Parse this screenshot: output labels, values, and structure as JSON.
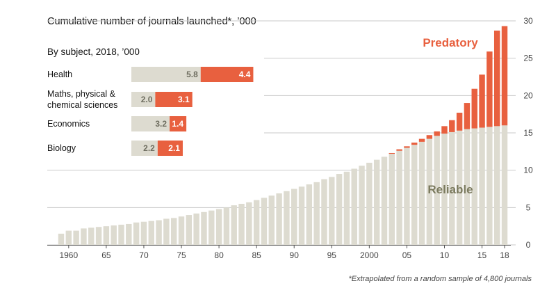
{
  "colors": {
    "reliable": "#dddbd0",
    "predatory": "#e8603f",
    "reliable_text": "#7b7a5e",
    "predatory_text": "#e8603f",
    "grid": "#c9c9c9"
  },
  "chart_data": [
    {
      "type": "bar",
      "stacked": true,
      "title": "Cumulative number of journals launched*, ’000",
      "x": [
        1959,
        1960,
        1961,
        1962,
        1963,
        1964,
        1965,
        1966,
        1967,
        1968,
        1969,
        1970,
        1971,
        1972,
        1973,
        1974,
        1975,
        1976,
        1977,
        1978,
        1979,
        1980,
        1981,
        1982,
        1983,
        1984,
        1985,
        1986,
        1987,
        1988,
        1989,
        1990,
        1991,
        1992,
        1993,
        1994,
        1995,
        1996,
        1997,
        1998,
        1999,
        2000,
        2001,
        2002,
        2003,
        2004,
        2005,
        2006,
        2007,
        2008,
        2009,
        2010,
        2011,
        2012,
        2013,
        2014,
        2015,
        2016,
        2017,
        2018
      ],
      "x_tick_values": [
        1960,
        1965,
        1970,
        1975,
        1980,
        1985,
        1990,
        1995,
        2000,
        2005,
        2010,
        2015,
        2018
      ],
      "x_tick_labels": [
        "1960",
        "65",
        "70",
        "75",
        "80",
        "85",
        "90",
        "95",
        "2000",
        "05",
        "10",
        "15",
        "18"
      ],
      "y_ticks": [
        "0",
        "5",
        "10",
        "15",
        "20",
        "25",
        "30"
      ],
      "ylim": [
        0,
        30
      ],
      "series": [
        {
          "name": "Reliable",
          "values": [
            1.5,
            1.9,
            1.9,
            2.2,
            2.3,
            2.4,
            2.5,
            2.6,
            2.7,
            2.8,
            3.0,
            3.1,
            3.2,
            3.3,
            3.5,
            3.6,
            3.8,
            4.0,
            4.2,
            4.4,
            4.6,
            4.8,
            5.0,
            5.3,
            5.5,
            5.7,
            6.0,
            6.3,
            6.6,
            6.9,
            7.2,
            7.5,
            7.8,
            8.1,
            8.4,
            8.8,
            9.1,
            9.5,
            9.8,
            10.2,
            10.6,
            11.0,
            11.4,
            11.8,
            12.2,
            12.6,
            13.0,
            13.4,
            13.8,
            14.2,
            14.6,
            14.9,
            15.1,
            15.3,
            15.5,
            15.6,
            15.7,
            15.8,
            15.9,
            16.0
          ]
        },
        {
          "name": "Predatory",
          "values": [
            0,
            0,
            0,
            0,
            0,
            0,
            0,
            0,
            0,
            0,
            0,
            0,
            0,
            0,
            0,
            0,
            0,
            0,
            0,
            0,
            0,
            0,
            0,
            0,
            0,
            0,
            0,
            0,
            0,
            0,
            0,
            0,
            0,
            0,
            0,
            0,
            0,
            0,
            0,
            0,
            0,
            0,
            0,
            0,
            0.1,
            0.2,
            0.2,
            0.3,
            0.4,
            0.5,
            0.6,
            1.0,
            1.6,
            2.4,
            3.5,
            5.3,
            7.1,
            10.1,
            12.8,
            13.3
          ]
        }
      ],
      "annotations": {
        "predatory_label": "Predatory",
        "reliable_label": "Reliable"
      },
      "footnote": "*Extrapolated from a random sample of 4,800 journals"
    },
    {
      "type": "bar",
      "orientation": "horizontal",
      "stacked": true,
      "title": "By subject, 2018, ’000",
      "categories": [
        "Health",
        "Maths, physical & chemical sciences",
        "Economics",
        "Biology"
      ],
      "category_lines": [
        [
          "Health"
        ],
        [
          "Maths, physical &",
          "chemical sciences"
        ],
        [
          "Economics"
        ],
        [
          "Biology"
        ]
      ],
      "series": [
        {
          "name": "Reliable",
          "values": [
            5.8,
            2.0,
            3.2,
            2.2
          ]
        },
        {
          "name": "Predatory",
          "values": [
            4.4,
            3.1,
            1.4,
            2.1
          ]
        }
      ],
      "value_labels": [
        [
          "5.8",
          "4.4"
        ],
        [
          "2.0",
          "3.1"
        ],
        [
          "3.2",
          "1.4"
        ],
        [
          "2.2",
          "2.1"
        ]
      ]
    }
  ]
}
